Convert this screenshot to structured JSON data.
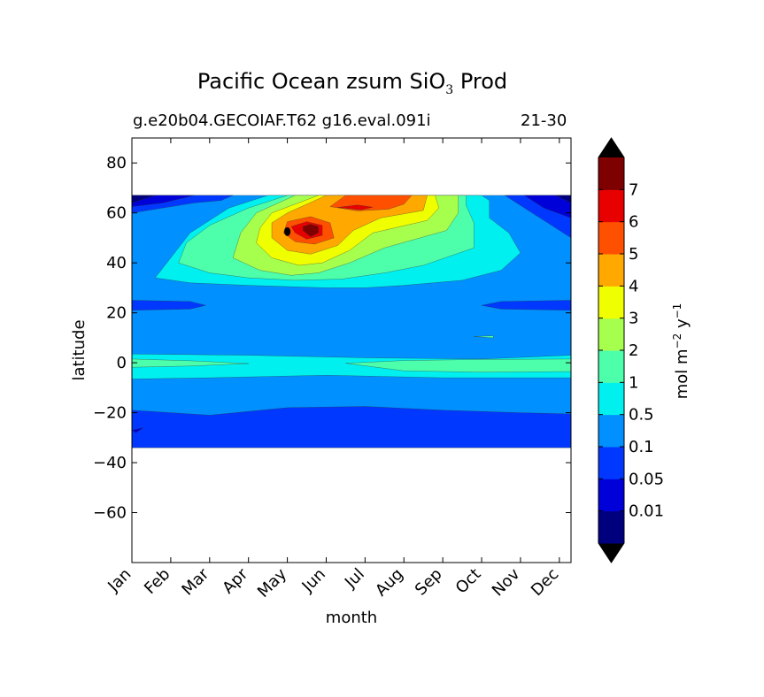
{
  "title": {
    "main": "Pacific Ocean zsum SiO",
    "sub": "3",
    "tail": " Prod"
  },
  "subtitle_left": "g.e20b04.GECOIAF.T62 g16.eval.091i",
  "subtitle_right": "21-30",
  "chart_data": {
    "type": "heatmap",
    "subtype": "filled-contour",
    "xlabel": "month",
    "ylabel": "latitude",
    "x_ticks": [
      "Jan",
      "Feb",
      "Mar",
      "Apr",
      "May",
      "Jun",
      "Jul",
      "Aug",
      "Sep",
      "Oct",
      "Nov",
      "Dec"
    ],
    "y_ticks": [
      -60,
      -40,
      -20,
      0,
      20,
      40,
      60,
      80
    ],
    "xlim": [
      0,
      11.3
    ],
    "ylim": [
      -80,
      90
    ],
    "data_lat_range": [
      -34,
      67
    ],
    "colorbar": {
      "label": "mol m^-2 y^-1",
      "levels": [
        0.01,
        0.05,
        0.1,
        0.5,
        1,
        2,
        3,
        4,
        5,
        6,
        7
      ],
      "level_labels": [
        "0.01",
        "0.05",
        "0.1",
        "0.5",
        "1",
        "2",
        "3",
        "4",
        "5",
        "6",
        "7"
      ],
      "colors": [
        "#00007f",
        "#0000d8",
        "#0038ff",
        "#0090ff",
        "#00f0f0",
        "#4dffaa",
        "#a6ff4d",
        "#f0ff00",
        "#ffa800",
        "#ff5000",
        "#e80000",
        "#7f0000"
      ],
      "extend": "both",
      "under_color": "#000000",
      "over_color": "#000000"
    },
    "regions": [
      {
        "level_index": 0,
        "description": "northern edge winter, 66N"
      },
      {
        "level_index": 2,
        "description": "subtropical south Pacific minimum, 18S to 34S"
      },
      {
        "level_index": 3,
        "description": "background"
      },
      {
        "level_index": 4,
        "description": "mid-latitude band 30N-60N and equatorial band"
      },
      {
        "level_index": 5,
        "description": "equatorial maximum near 0 latitude"
      },
      {
        "level_index": 11,
        "description": "peak near 53N in May"
      }
    ],
    "peak": {
      "month": "May",
      "lat": 53,
      "value": 7
    }
  }
}
